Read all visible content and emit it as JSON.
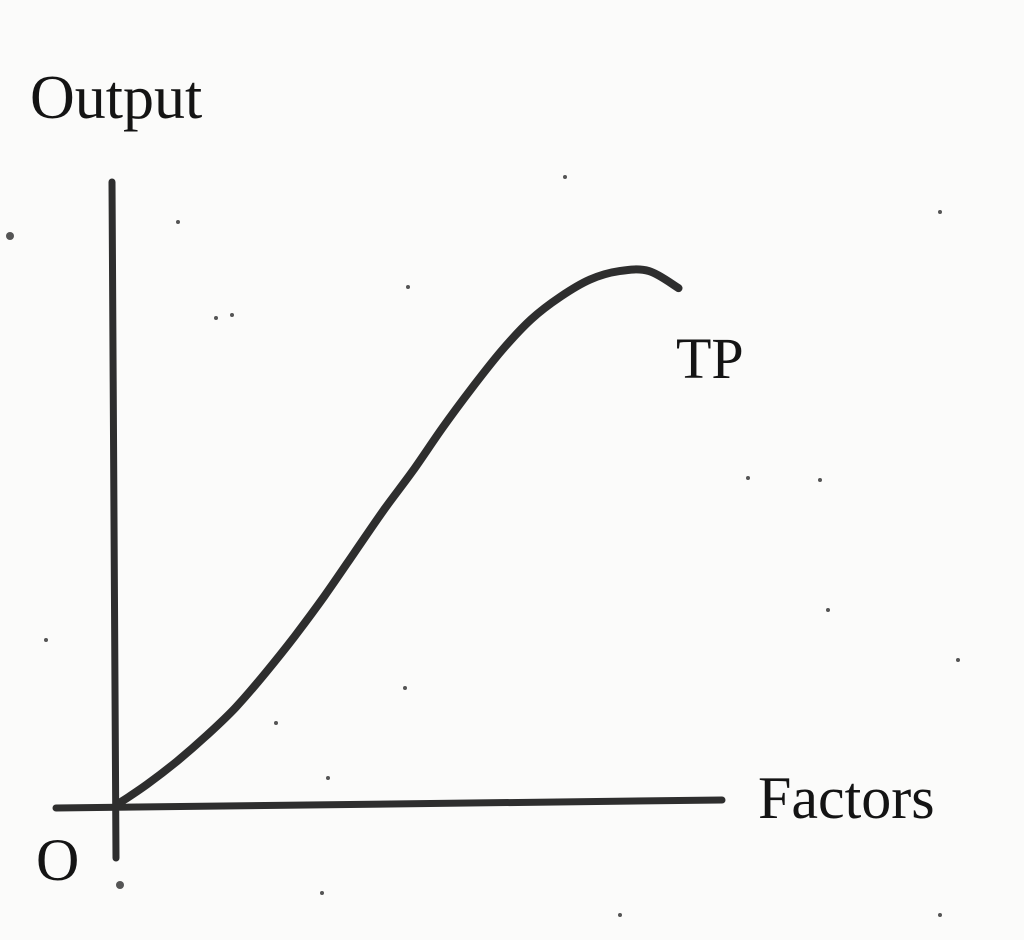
{
  "chart_data": {
    "type": "line",
    "title": "",
    "ylabel": "Output",
    "xlabel": "Factors",
    "origin_label": "O",
    "grid": false,
    "legend": "none",
    "xlim": [
      0,
      10
    ],
    "ylim": [
      0,
      10
    ],
    "series": [
      {
        "name": "TP",
        "color": "#2e2e2e",
        "x": [
          0,
          0.5,
          1,
          1.5,
          2,
          2.5,
          3,
          3.5,
          4,
          4.5,
          5,
          5.5,
          6,
          6.5,
          7,
          7.5,
          8,
          8.5,
          9,
          9.5
        ],
        "y": [
          0,
          0.35,
          0.75,
          1.2,
          1.7,
          2.3,
          2.95,
          3.65,
          4.4,
          5.15,
          5.85,
          6.6,
          7.3,
          7.95,
          8.5,
          8.9,
          9.2,
          9.35,
          9.35,
          9.05
        ]
      }
    ]
  }
}
